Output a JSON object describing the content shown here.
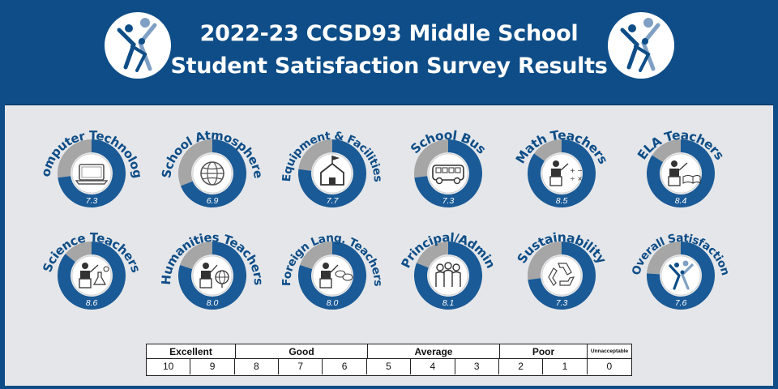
{
  "title_line1": "2022-23 CCSD93 Middle School",
  "title_line2": "Student Satisfaction Survey Results",
  "colors": {
    "navy": "#0e4d87",
    "fill": "#1a5a96",
    "remainder": "#a6a6a6",
    "panel": "#e4e6e9"
  },
  "chart_data": {
    "type": "pie",
    "scale_max": 10,
    "series": [
      {
        "label": "Computer Technology",
        "value": 7.3,
        "icon": "laptop-icon"
      },
      {
        "label": "School Atmosphere",
        "value": 6.9,
        "icon": "globe-icon"
      },
      {
        "label": "Equipment & Facilities",
        "value": 7.7,
        "icon": "school-building-icon"
      },
      {
        "label": "School Bus",
        "value": 7.3,
        "icon": "bus-icon"
      },
      {
        "label": "Math Teachers",
        "value": 8.5,
        "icon": "math-teacher-icon"
      },
      {
        "label": "ELA Teachers",
        "value": 8.4,
        "icon": "ela-teacher-icon"
      },
      {
        "label": "Science Teachers",
        "value": 8.6,
        "icon": "science-teacher-icon"
      },
      {
        "label": "Humanities Teachers",
        "value": 8.0,
        "icon": "humanities-teacher-icon"
      },
      {
        "label": "Foreign Lang. Teachers",
        "value": 8.0,
        "icon": "foreign-language-teacher-icon"
      },
      {
        "label": "Principal/Admin",
        "value": 8.1,
        "icon": "admin-group-icon"
      },
      {
        "label": "Sustainability",
        "value": 7.3,
        "icon": "recycle-icon"
      },
      {
        "label": "Overall Satisfaction",
        "value": 7.6,
        "icon": "district-logo-icon"
      }
    ]
  },
  "legend": {
    "categories": [
      "Excellent",
      "Good",
      "Average",
      "Poor",
      "Unnacceptable"
    ],
    "scores": [
      "10",
      "9",
      "8",
      "7",
      "6",
      "5",
      "4",
      "3",
      "2",
      "1",
      "0"
    ]
  }
}
